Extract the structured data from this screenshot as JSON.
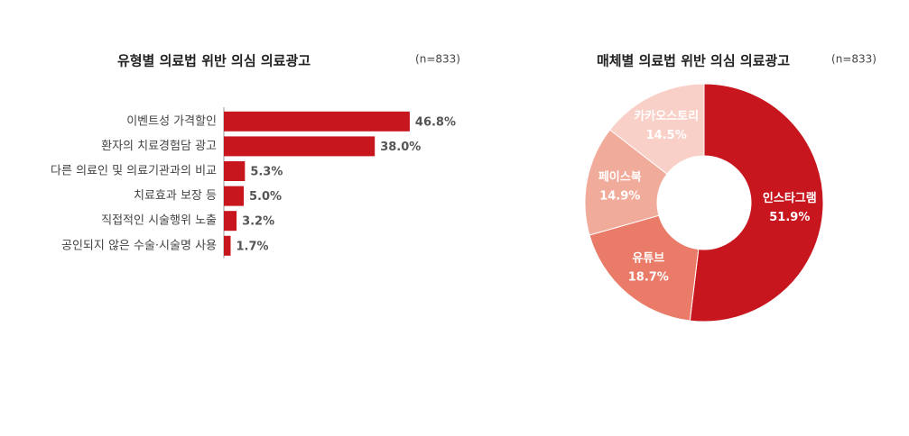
{
  "chart_data": [
    {
      "type": "bar",
      "orientation": "horizontal",
      "title": "유형별 의료법 위반 의심 의료광고",
      "subtitle": "(n=833)",
      "categories": [
        "이벤트성 가격할인",
        "환자의 치료경험담 광고",
        "다른 의료인 및 의료기관과의 비교",
        "치료효과 보장 등",
        "직접적인 시술행위 노출",
        "공인되지 않은 수술·시술명 사용"
      ],
      "values": [
        46.8,
        38.0,
        5.3,
        5.0,
        3.2,
        1.7
      ],
      "value_labels": [
        "46.8%",
        "38.0%",
        "5.3%",
        "5.0%",
        "3.2%",
        "1.7%"
      ],
      "color": "#c8161e"
    },
    {
      "type": "donut",
      "title": "매체별 의료법 위반 의심 의료광고",
      "subtitle": "(n=833)",
      "categories": [
        "인스타그램",
        "유튜브",
        "페이스북",
        "카카오스토리"
      ],
      "values": [
        51.9,
        18.7,
        14.9,
        14.5
      ],
      "value_labels": [
        "51.9%",
        "18.7%",
        "14.9%",
        "14.5%"
      ],
      "colors": [
        "#c8161e",
        "#e97b68",
        "#f1ab9b",
        "#f8d0c7"
      ]
    }
  ]
}
